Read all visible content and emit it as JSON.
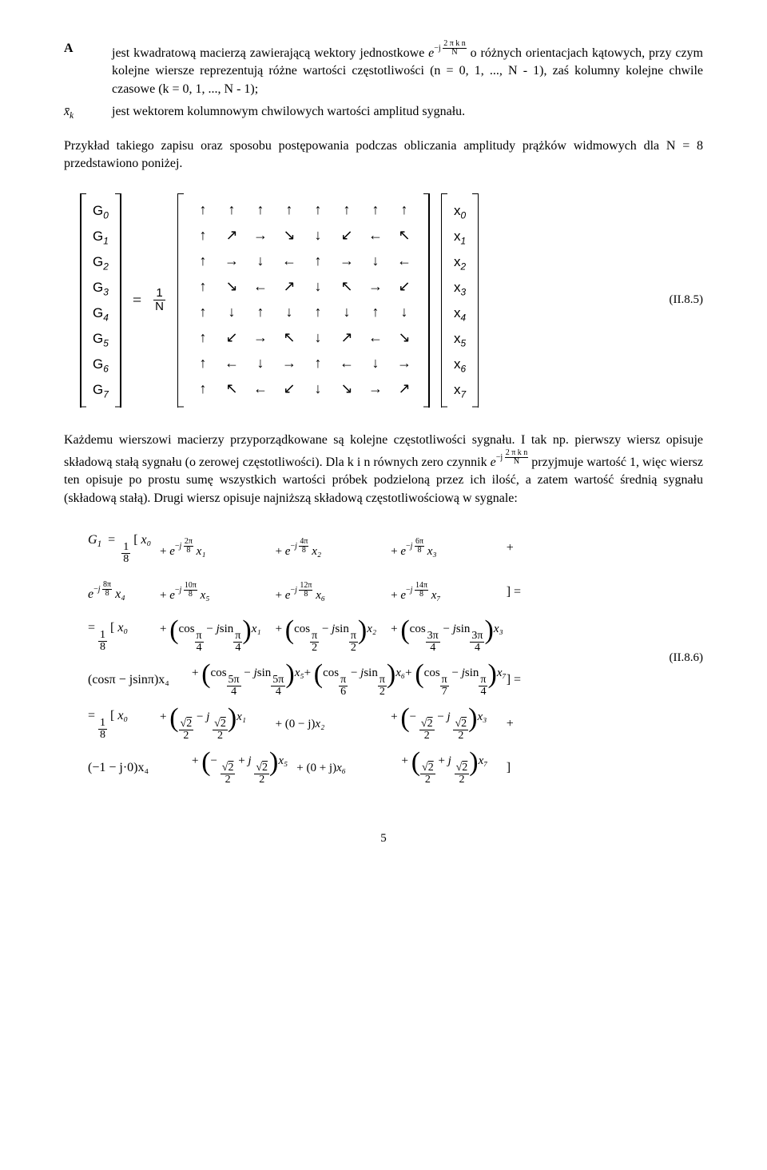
{
  "defs": {
    "A_sym": "A",
    "A_txt_pre": "jest kwadratową macierzą zawierającą wektory jednostkowe ",
    "A_exp_base": "e",
    "A_exp_exp_minus": "−j",
    "A_exp_frac_num": "2 π k n",
    "A_exp_frac_den": "N",
    "A_txt_post": " o różnych orientacjach kątowych, przy czym kolejne wiersze reprezentują różne wartości częstotliwości (n = 0, 1, ..., N - 1), zaś kolumny kolejne chwile czasowe (k = 0, 1, ..., N - 1);",
    "x_sym_bar": "x̄",
    "x_sym_sub": "k",
    "x_txt": "jest wektorem kolumnowym chwilowych wartości amplitud sygnału."
  },
  "p1": "Przykład takiego zapisu oraz sposobu postępowania podczas obliczania amplitudy prążków widmowych dla N = 8 przedstawiono poniżej.",
  "matrix": {
    "G": [
      "G",
      "G",
      "G",
      "G",
      "G",
      "G",
      "G",
      "G"
    ],
    "G_sub": [
      "0",
      "1",
      "2",
      "3",
      "4",
      "5",
      "6",
      "7"
    ],
    "eq": "=",
    "frac_num": "1",
    "frac_den": "N",
    "arrows": [
      [
        "↑",
        "↑",
        "↑",
        "↑",
        "↑",
        "↑",
        "↑",
        "↑"
      ],
      [
        "↑",
        "↗",
        "→",
        "↘",
        "↓",
        "↙",
        "←",
        "↖"
      ],
      [
        "↑",
        "→",
        "↓",
        "←",
        "↑",
        "→",
        "↓",
        "←"
      ],
      [
        "↑",
        "↘",
        "←",
        "↗",
        "↓",
        "↖",
        "→",
        "↙"
      ],
      [
        "↑",
        "↓",
        "↑",
        "↓",
        "↑",
        "↓",
        "↑",
        "↓"
      ],
      [
        "↑",
        "↙",
        "→",
        "↖",
        "↓",
        "↗",
        "←",
        "↘"
      ],
      [
        "↑",
        "←",
        "↓",
        "→",
        "↑",
        "←",
        "↓",
        "→"
      ],
      [
        "↑",
        "↖",
        "←",
        "↙",
        "↓",
        "↘",
        "→",
        "↗"
      ]
    ],
    "x": [
      "x",
      "x",
      "x",
      "x",
      "x",
      "x",
      "x",
      "x"
    ],
    "x_sub": [
      "0",
      "1",
      "2",
      "3",
      "4",
      "5",
      "6",
      "7"
    ],
    "eqnum": "(II.8.5)"
  },
  "p2_a": "Każdemu wierszowi macierzy przyporządkowane są kolejne częstotliwości sygnału. I tak np. pierwszy wiersz opisuje składową stałą sygnału (o zerowej częstotliwości). Dla k i n równych",
  "p2_b": "zero czynnik ",
  "p2_c": " przyjmuje wartość 1, więc wiersz ten opisuje po prostu sumę wszystkich wartości próbek podzieloną przez ich ilość, a zatem wartość średnią sygnału (składową stałą). Drugi wiersz opisuje najniższą składową częstotliwościową w sygnale:",
  "g1": {
    "lhs": "G",
    "lhs_sub": "1",
    "eq": "=",
    "one_eighth_num": "1",
    "one_eighth_den": "8",
    "row1": {
      "t0": "x₀",
      "exps": [
        "2π",
        "4π",
        "6π"
      ],
      "den": "8",
      "xs": [
        "x₁",
        "x₂",
        "x₃"
      ]
    },
    "row2": {
      "exps": [
        "8π",
        "10π",
        "12π",
        "14π"
      ],
      "den": "8",
      "xs": [
        "x₄",
        "x₅",
        "x₆",
        "x₇"
      ]
    },
    "row3": {
      "lead": "= ",
      "t0": "x₀",
      "a": [
        "π",
        "π",
        "3π"
      ],
      "a_den": [
        "4",
        "2",
        "4"
      ],
      "xs": [
        "x₁",
        "x₂",
        "x₃"
      ]
    },
    "row4": {
      "lead": "(cosπ − jsinπ)x₄",
      "a": [
        "5π",
        "π",
        "π"
      ],
      "a_den": [
        "4",
        "6",
        "7"
      ],
      "b": [
        "5π",
        "π",
        "π"
      ],
      "b_den": [
        "4",
        "2",
        "4"
      ],
      "xs": [
        "x₅",
        "x₆",
        "x₇"
      ]
    },
    "row5": {
      "t0": "x₀",
      "signs": [
        "",
        "−",
        "−"
      ],
      "isigns": [
        "− j",
        "",
        "− j"
      ],
      "xs": [
        "x₁",
        "x₂",
        "x₃"
      ],
      "mid": "(0 − j)"
    },
    "row6": {
      "lead": "(−1 − j·0)x₄",
      "signs": [
        "−",
        "",
        "",
        ""
      ],
      "isigns": [
        "+ j",
        "",
        "+ j"
      ],
      "xs": [
        "x₅",
        "x₆",
        "x₇"
      ],
      "mid": "(0 + j)"
    },
    "eqnum": "(II.8.6)"
  },
  "page": "5"
}
